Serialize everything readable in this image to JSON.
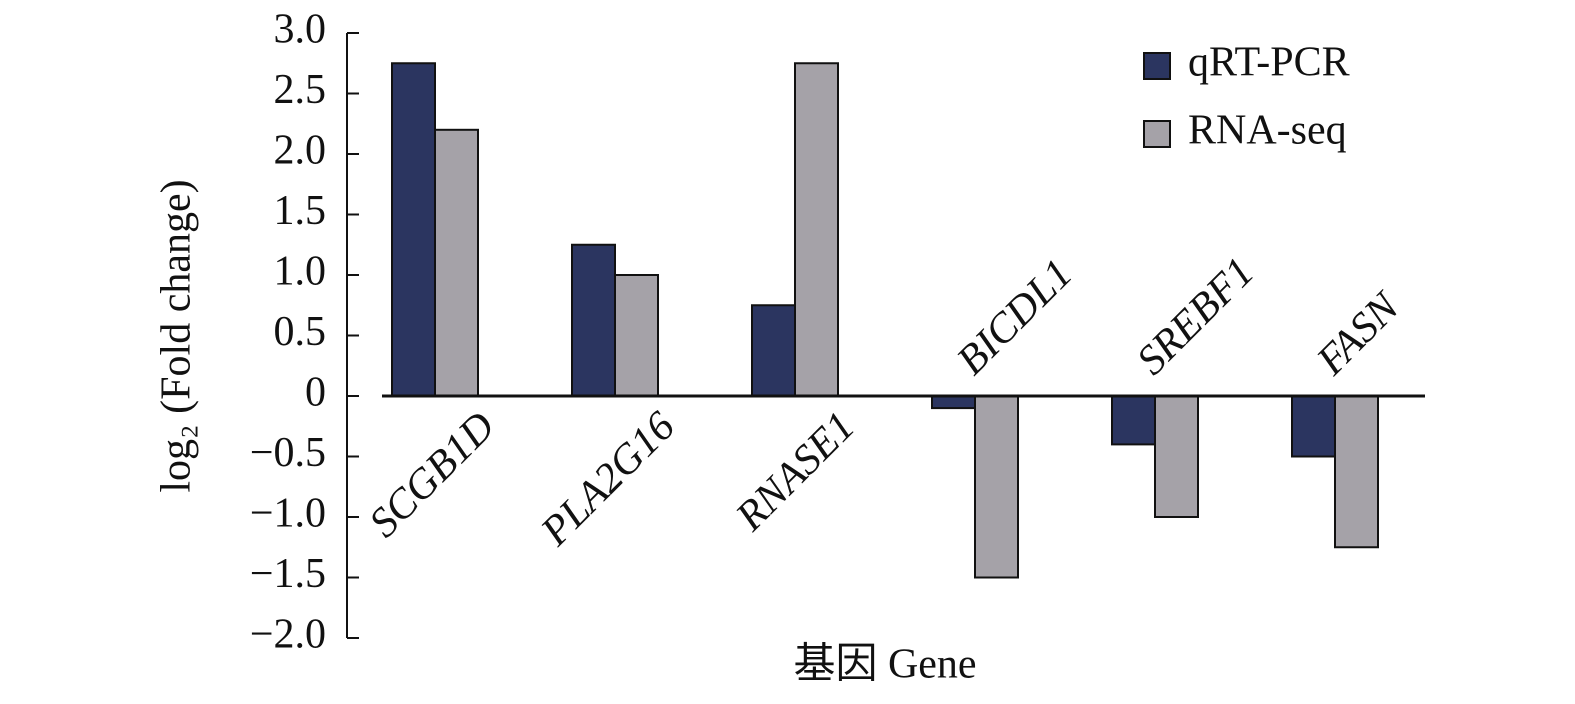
{
  "chart_data": {
    "type": "bar",
    "ylabel": "log₂ (Fold change)",
    "xlabel": "基因 Gene",
    "categories": [
      "SCGB1D",
      "PLA2G16",
      "RNASE1",
      "BICDL1",
      "SREBF1",
      "FASN"
    ],
    "series": [
      {
        "name": "qRT-PCR",
        "color": "#2b3560",
        "values": [
          2.75,
          1.25,
          0.75,
          -0.1,
          -0.4,
          -0.5
        ]
      },
      {
        "name": "RNA-seq",
        "color": "#a5a2a8",
        "values": [
          2.2,
          1.0,
          2.75,
          -1.5,
          -1.0,
          -1.25
        ]
      }
    ],
    "ylim": [
      -2,
      3
    ],
    "yticks": [
      {
        "value": 3,
        "label": "3.0"
      },
      {
        "value": 2.5,
        "label": "2.5"
      },
      {
        "value": 2,
        "label": "2.0"
      },
      {
        "value": 1.5,
        "label": "1.5"
      },
      {
        "value": 1,
        "label": "1.0"
      },
      {
        "value": 0.5,
        "label": "0.5"
      },
      0,
      {
        "value": -0.5,
        "label": "−0.5"
      },
      {
        "value": -1,
        "label": "−1.0"
      },
      {
        "value": -1.5,
        "label": "−1.5"
      },
      {
        "value": -2,
        "label": "−2.0"
      }
    ],
    "legend": "top-right"
  }
}
